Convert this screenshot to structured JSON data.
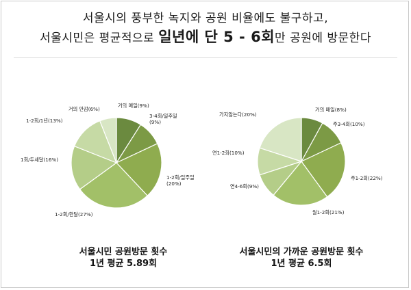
{
  "headline": {
    "line1": "서울시의 풍부한 녹지와 공원 비율에도 불구하고,",
    "line2_pre": "서울시민은 평균적으로",
    "line2_big": "일년에 단 5 - 6회",
    "line2_post": "만 공원에 방문한다"
  },
  "captions": [
    {
      "title": "서울시민 공원방문 횟수",
      "sub": "1년 평균 5.89회"
    },
    {
      "title": "서울시민의 가까운 공원방문 횟수",
      "sub": "1년 평균 6.5회"
    }
  ],
  "colors": [
    "#6b8a3f",
    "#7c9a45",
    "#8fac4f",
    "#a2c068",
    "#b4cd88",
    "#c6daa5",
    "#d8e6c4"
  ],
  "chart_data": [
    {
      "type": "pie",
      "title": "서울시민 공원방문 횟수",
      "slices": [
        {
          "label": "거의 매일(9%)",
          "value": 9,
          "color": "#6b8a3f"
        },
        {
          "label": "3-4회/일주일\n(9%)",
          "value": 9,
          "color": "#7c9a45"
        },
        {
          "label": "1-2회/일주일\n(20%)",
          "value": 20,
          "color": "#8fac4f"
        },
        {
          "label": "1-2회/한달(27%)",
          "value": 27,
          "color": "#a2c068"
        },
        {
          "label": "1회/두세달(16%)",
          "value": 16,
          "color": "#b4cd88"
        },
        {
          "label": "1-2회/1년(13%)",
          "value": 13,
          "color": "#c6daa5"
        },
        {
          "label": "거의 안감(6%)",
          "value": 6,
          "color": "#d8e6c4"
        }
      ]
    },
    {
      "type": "pie",
      "title": "서울시민의 가까운 공원방문 횟수",
      "slices": [
        {
          "label": "거의 매일(8%)",
          "value": 8,
          "color": "#6b8a3f"
        },
        {
          "label": "주3-4회(10%)",
          "value": 10,
          "color": "#7c9a45"
        },
        {
          "label": "주1-2회(22%)",
          "value": 22,
          "color": "#8fac4f"
        },
        {
          "label": "월1-2회(21%)",
          "value": 21,
          "color": "#a2c068"
        },
        {
          "label": "연4-6회(9%)",
          "value": 9,
          "color": "#b4cd88"
        },
        {
          "label": "연1-2회(10%)",
          "value": 10,
          "color": "#c6daa5"
        },
        {
          "label": "가지않는다(20%)",
          "value": 20,
          "color": "#d8e6c4"
        }
      ]
    }
  ]
}
